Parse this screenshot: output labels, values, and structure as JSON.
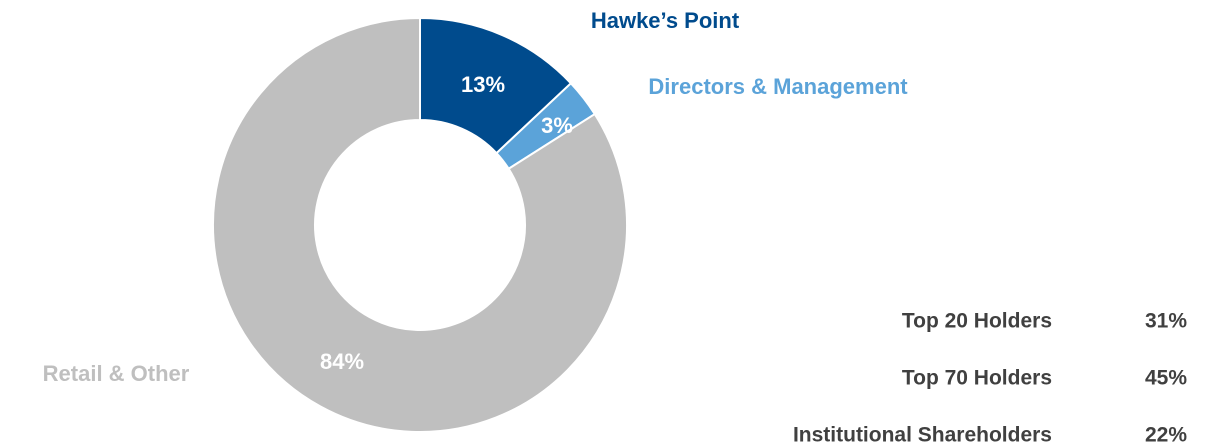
{
  "chart_data": {
    "type": "donut",
    "categories": [
      "Hawke’s Point",
      "Directors & Management",
      "Retail & Other"
    ],
    "values": [
      13,
      3,
      84
    ],
    "value_labels": [
      "13%",
      "3%",
      "84%"
    ],
    "colors": [
      "#004b8d",
      "#5ba3d9",
      "#bfbfbf"
    ]
  },
  "summary": {
    "rows": [
      {
        "label": "Top 20 Holders",
        "value": "31%"
      },
      {
        "label": "Top 70 Holders",
        "value": "45%"
      },
      {
        "label": "Institutional Shareholders",
        "value": "22%"
      }
    ]
  }
}
